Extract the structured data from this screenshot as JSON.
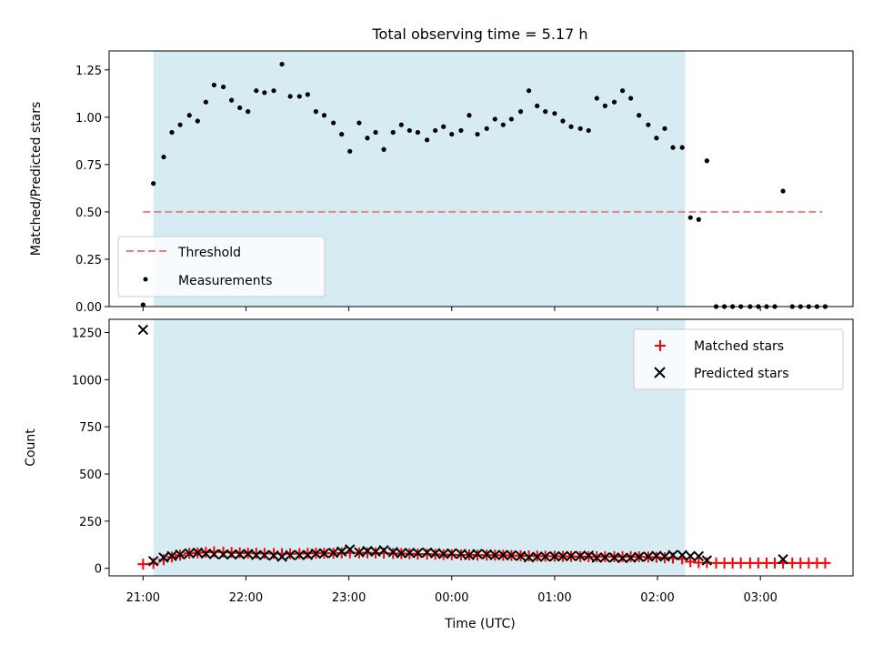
{
  "chart_data": [
    {
      "type": "scatter",
      "title": "Total observing time = 5.17 h",
      "xlabel": "",
      "ylabel": "Matched/Predicted stars",
      "x_unit": "hours since 21:00 UTC",
      "xlim": [
        -0.33,
        6.9
      ],
      "ylim": [
        0,
        1.35
      ],
      "yticks": [
        0,
        0.25,
        0.5,
        0.75,
        1.0,
        1.25
      ],
      "ytick_labels": [
        "0.00",
        "0.25",
        "0.50",
        "0.75",
        "1.00",
        "1.25"
      ],
      "shaded_span": {
        "start": 0.1,
        "end": 5.27,
        "color": "#add8e6"
      },
      "threshold": {
        "name": "Threshold",
        "value": 0.5,
        "x_range": [
          0,
          6.6
        ],
        "color": "#f08080"
      },
      "legend": {
        "position": "lower-left",
        "entries": [
          "Threshold",
          "Measurements"
        ]
      },
      "series": [
        {
          "name": "Measurements",
          "color": "#000000",
          "x": [
            0.0,
            0.1,
            0.2,
            0.28,
            0.36,
            0.45,
            0.53,
            0.61,
            0.69,
            0.78,
            0.86,
            0.94,
            1.02,
            1.1,
            1.18,
            1.27,
            1.35,
            1.43,
            1.52,
            1.6,
            1.68,
            1.76,
            1.85,
            1.93,
            2.01,
            2.1,
            2.18,
            2.26,
            2.34,
            2.43,
            2.51,
            2.59,
            2.67,
            2.76,
            2.84,
            2.92,
            3.0,
            3.09,
            3.17,
            3.25,
            3.34,
            3.42,
            3.5,
            3.58,
            3.67,
            3.75,
            3.83,
            3.91,
            4.0,
            4.08,
            4.16,
            4.25,
            4.33,
            4.41,
            4.49,
            4.58,
            4.66,
            4.74,
            4.82,
            4.91,
            4.99,
            5.07,
            5.15,
            5.24,
            5.32,
            5.4,
            5.48,
            5.57,
            5.65,
            5.73,
            5.81,
            5.9,
            5.98,
            6.06,
            6.14,
            6.22,
            6.31,
            6.39,
            6.47,
            6.55,
            6.63
          ],
          "y": [
            0.01,
            0.65,
            0.79,
            0.92,
            0.96,
            1.01,
            0.98,
            1.08,
            1.17,
            1.16,
            1.09,
            1.05,
            1.03,
            1.14,
            1.13,
            1.14,
            1.28,
            1.11,
            1.11,
            1.12,
            1.03,
            1.01,
            0.97,
            0.91,
            0.82,
            0.97,
            0.89,
            0.92,
            0.83,
            0.92,
            0.96,
            0.93,
            0.92,
            0.88,
            0.93,
            0.95,
            0.91,
            0.93,
            1.01,
            0.91,
            0.94,
            0.99,
            0.96,
            0.99,
            1.03,
            1.14,
            1.06,
            1.03,
            1.02,
            0.98,
            0.95,
            0.94,
            0.93,
            1.1,
            1.06,
            1.08,
            1.14,
            1.1,
            1.01,
            0.96,
            0.89,
            0.94,
            0.84,
            0.84,
            0.47,
            0.46,
            0.77,
            0.0,
            0.0,
            0.0,
            0.0,
            0.0,
            0.0,
            0.0,
            0.0,
            0.61,
            0.0,
            0.0,
            0.0,
            0.0,
            0.0
          ]
        }
      ]
    },
    {
      "type": "scatter",
      "title": "",
      "xlabel": "Time (UTC)",
      "ylabel": "Count",
      "x_unit": "hours since 21:00 UTC",
      "xlim": [
        -0.33,
        6.9
      ],
      "ylim": [
        -40,
        1320
      ],
      "yticks": [
        0,
        250,
        500,
        750,
        1000,
        1250
      ],
      "ytick_labels": [
        "0",
        "250",
        "500",
        "750",
        "1000",
        "1250"
      ],
      "xticks": [
        0,
        1,
        2,
        3,
        4,
        5,
        6
      ],
      "xtick_labels": [
        "21:00",
        "22:00",
        "23:00",
        "00:00",
        "01:00",
        "02:00",
        "03:00"
      ],
      "shaded_span": {
        "start": 0.1,
        "end": 5.27,
        "color": "#add8e6"
      },
      "legend": {
        "position": "top-right",
        "entries": [
          "Matched stars",
          "Predicted stars"
        ]
      },
      "series": [
        {
          "name": "Matched stars",
          "marker": "plus",
          "color": "#ff0000",
          "x": [
            0.0,
            0.1,
            0.2,
            0.28,
            0.36,
            0.45,
            0.53,
            0.61,
            0.69,
            0.78,
            0.86,
            0.94,
            1.02,
            1.1,
            1.18,
            1.27,
            1.35,
            1.43,
            1.52,
            1.6,
            1.68,
            1.76,
            1.85,
            1.93,
            2.01,
            2.1,
            2.18,
            2.26,
            2.34,
            2.43,
            2.51,
            2.59,
            2.67,
            2.76,
            2.84,
            2.92,
            3.0,
            3.09,
            3.17,
            3.25,
            3.34,
            3.42,
            3.5,
            3.58,
            3.67,
            3.75,
            3.83,
            3.91,
            4.0,
            4.08,
            4.16,
            4.25,
            4.33,
            4.41,
            4.49,
            4.58,
            4.66,
            4.74,
            4.82,
            4.91,
            4.99,
            5.07,
            5.15,
            5.24,
            5.32,
            5.4,
            5.48,
            5.57,
            5.65,
            5.73,
            5.81,
            5.9,
            5.98,
            6.06,
            6.14,
            6.22,
            6.31,
            6.39,
            6.47,
            6.55,
            6.63
          ],
          "y": [
            22,
            25,
            45,
            60,
            70,
            80,
            82,
            85,
            88,
            86,
            84,
            82,
            80,
            80,
            79,
            78,
            78,
            77,
            78,
            80,
            80,
            80,
            80,
            81,
            82,
            82,
            82,
            81,
            80,
            79,
            78,
            77,
            76,
            75,
            74,
            73,
            72,
            71,
            71,
            70,
            70,
            70,
            69,
            68,
            67,
            66,
            65,
            64,
            64,
            63,
            63,
            62,
            62,
            62,
            62,
            62,
            62,
            62,
            61,
            60,
            58,
            56,
            54,
            50,
            35,
            30,
            30,
            28,
            28,
            28,
            28,
            28,
            28,
            28,
            28,
            28,
            28,
            28,
            28,
            28,
            28
          ]
        },
        {
          "name": "Predicted stars",
          "marker": "x",
          "color": "#000000",
          "x": [
            0.0,
            0.1,
            0.2,
            0.28,
            0.36,
            0.45,
            0.53,
            0.61,
            0.69,
            0.78,
            0.86,
            0.94,
            1.02,
            1.1,
            1.18,
            1.27,
            1.35,
            1.43,
            1.52,
            1.6,
            1.68,
            1.76,
            1.85,
            1.93,
            2.01,
            2.1,
            2.18,
            2.26,
            2.34,
            2.43,
            2.51,
            2.59,
            2.67,
            2.76,
            2.84,
            2.92,
            3.0,
            3.09,
            3.17,
            3.25,
            3.34,
            3.42,
            3.5,
            3.58,
            3.67,
            3.75,
            3.83,
            3.91,
            4.0,
            4.08,
            4.16,
            4.25,
            4.33,
            4.41,
            4.49,
            4.58,
            4.66,
            4.74,
            4.82,
            4.91,
            4.99,
            5.07,
            5.15,
            5.24,
            5.32,
            5.4,
            5.48,
            6.22
          ],
          "y": [
            1265,
            38,
            57,
            65,
            73,
            79,
            83,
            78,
            75,
            74,
            73,
            74,
            76,
            70,
            70,
            68,
            61,
            70,
            70,
            71,
            78,
            79,
            82,
            89,
            100,
            85,
            92,
            88,
            96,
            86,
            80,
            82,
            81,
            84,
            80,
            76,
            79,
            76,
            70,
            76,
            74,
            70,
            71,
            69,
            65,
            58,
            61,
            62,
            63,
            64,
            65,
            66,
            67,
            56,
            58,
            57,
            54,
            56,
            60,
            62,
            66,
            62,
            70,
            70,
            65,
            64,
            42,
            48
          ]
        }
      ]
    }
  ]
}
